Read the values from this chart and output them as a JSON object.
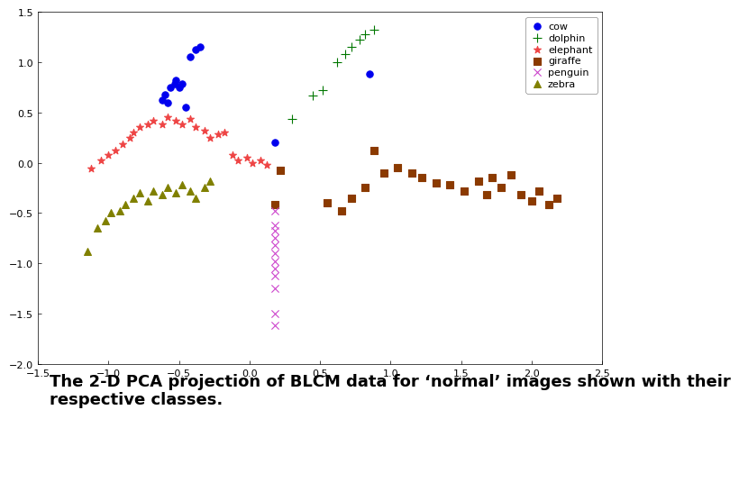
{
  "cow": {
    "x": [
      -0.56,
      -0.53,
      -0.5,
      -0.52,
      -0.48,
      -0.6,
      -0.62,
      -0.58,
      -0.45,
      -0.42,
      -0.38,
      -0.35,
      0.85,
      0.18
    ],
    "y": [
      0.75,
      0.78,
      0.75,
      0.82,
      0.78,
      0.68,
      0.62,
      0.6,
      0.55,
      1.05,
      1.12,
      1.15,
      0.88,
      0.2
    ],
    "color": "#0000ee",
    "marker": "o",
    "label": "cow",
    "size": 28
  },
  "dolphin": {
    "x": [
      0.3,
      0.45,
      0.52,
      0.62,
      0.68,
      0.72,
      0.78,
      0.82,
      0.88
    ],
    "y": [
      0.43,
      0.67,
      0.72,
      1.0,
      1.08,
      1.15,
      1.22,
      1.28,
      1.32
    ],
    "color": "#007700",
    "marker": "+",
    "label": "dolphin",
    "size": 60
  },
  "elephant": {
    "x": [
      -1.12,
      -1.05,
      -1.0,
      -0.95,
      -0.9,
      -0.85,
      -0.82,
      -0.78,
      -0.72,
      -0.68,
      -0.62,
      -0.58,
      -0.52,
      -0.48,
      -0.42,
      -0.38,
      -0.32,
      -0.28,
      -0.22,
      -0.18,
      -0.12,
      -0.08,
      -0.02,
      0.02,
      0.08,
      0.12
    ],
    "y": [
      -0.06,
      0.02,
      0.08,
      0.12,
      0.18,
      0.25,
      0.3,
      0.35,
      0.38,
      0.42,
      0.38,
      0.45,
      0.42,
      0.38,
      0.43,
      0.35,
      0.32,
      0.25,
      0.28,
      0.3,
      0.08,
      0.02,
      0.05,
      0.0,
      0.02,
      -0.02
    ],
    "color": "#ee4444",
    "marker": "*",
    "label": "elephant",
    "size": 35
  },
  "giraffe": {
    "x": [
      0.18,
      0.22,
      0.55,
      0.65,
      0.72,
      0.82,
      0.88,
      0.95,
      1.05,
      1.15,
      1.22,
      1.32,
      1.42,
      1.52,
      1.62,
      1.68,
      1.72,
      1.78,
      1.85,
      1.92,
      2.0,
      2.05,
      2.12,
      2.18
    ],
    "y": [
      -0.42,
      -0.08,
      -0.4,
      -0.48,
      -0.35,
      -0.25,
      0.12,
      -0.1,
      -0.05,
      -0.1,
      -0.15,
      -0.2,
      -0.22,
      -0.28,
      -0.18,
      -0.32,
      -0.15,
      -0.25,
      -0.12,
      -0.32,
      -0.38,
      -0.28,
      -0.42,
      -0.35
    ],
    "color": "#8B3A00",
    "marker": "s",
    "label": "giraffe",
    "size": 28
  },
  "penguin": {
    "x": [
      0.18,
      0.18,
      0.18,
      0.18,
      0.18,
      0.18,
      0.18,
      0.18,
      0.18,
      0.18,
      0.18,
      0.18
    ],
    "y": [
      -0.48,
      -0.62,
      -0.68,
      -0.75,
      -0.82,
      -0.9,
      -0.98,
      -1.05,
      -1.12,
      -1.25,
      -1.5,
      -1.62
    ],
    "color": "#cc44cc",
    "marker": "x",
    "label": "penguin",
    "size": 35
  },
  "zebra": {
    "x": [
      -1.15,
      -1.08,
      -1.02,
      -0.98,
      -0.92,
      -0.88,
      -0.82,
      -0.78,
      -0.72,
      -0.68,
      -0.62,
      -0.58,
      -0.52,
      -0.48,
      -0.42,
      -0.38,
      -0.32,
      -0.28
    ],
    "y": [
      -0.88,
      -0.65,
      -0.58,
      -0.5,
      -0.48,
      -0.42,
      -0.35,
      -0.3,
      -0.38,
      -0.28,
      -0.32,
      -0.25,
      -0.3,
      -0.22,
      -0.28,
      -0.35,
      -0.25,
      -0.18
    ],
    "color": "#808000",
    "marker": "^",
    "label": "zebra",
    "size": 32
  },
  "xlim": [
    -1.5,
    2.5
  ],
  "ylim": [
    -2.0,
    1.5
  ],
  "xticks": [
    -1.5,
    -1.0,
    -0.5,
    0.0,
    0.5,
    1.0,
    1.5,
    2.0,
    2.5
  ],
  "yticks": [
    -2.0,
    -1.5,
    -1.0,
    -0.5,
    0.0,
    0.5,
    1.0,
    1.5
  ],
  "caption": "The 2-D PCA projection of BLCM data for ‘normal’ images shown with their\nrespective classes.",
  "bg_color": "#ffffff",
  "figsize": [
    7.2,
    5.4
  ]
}
